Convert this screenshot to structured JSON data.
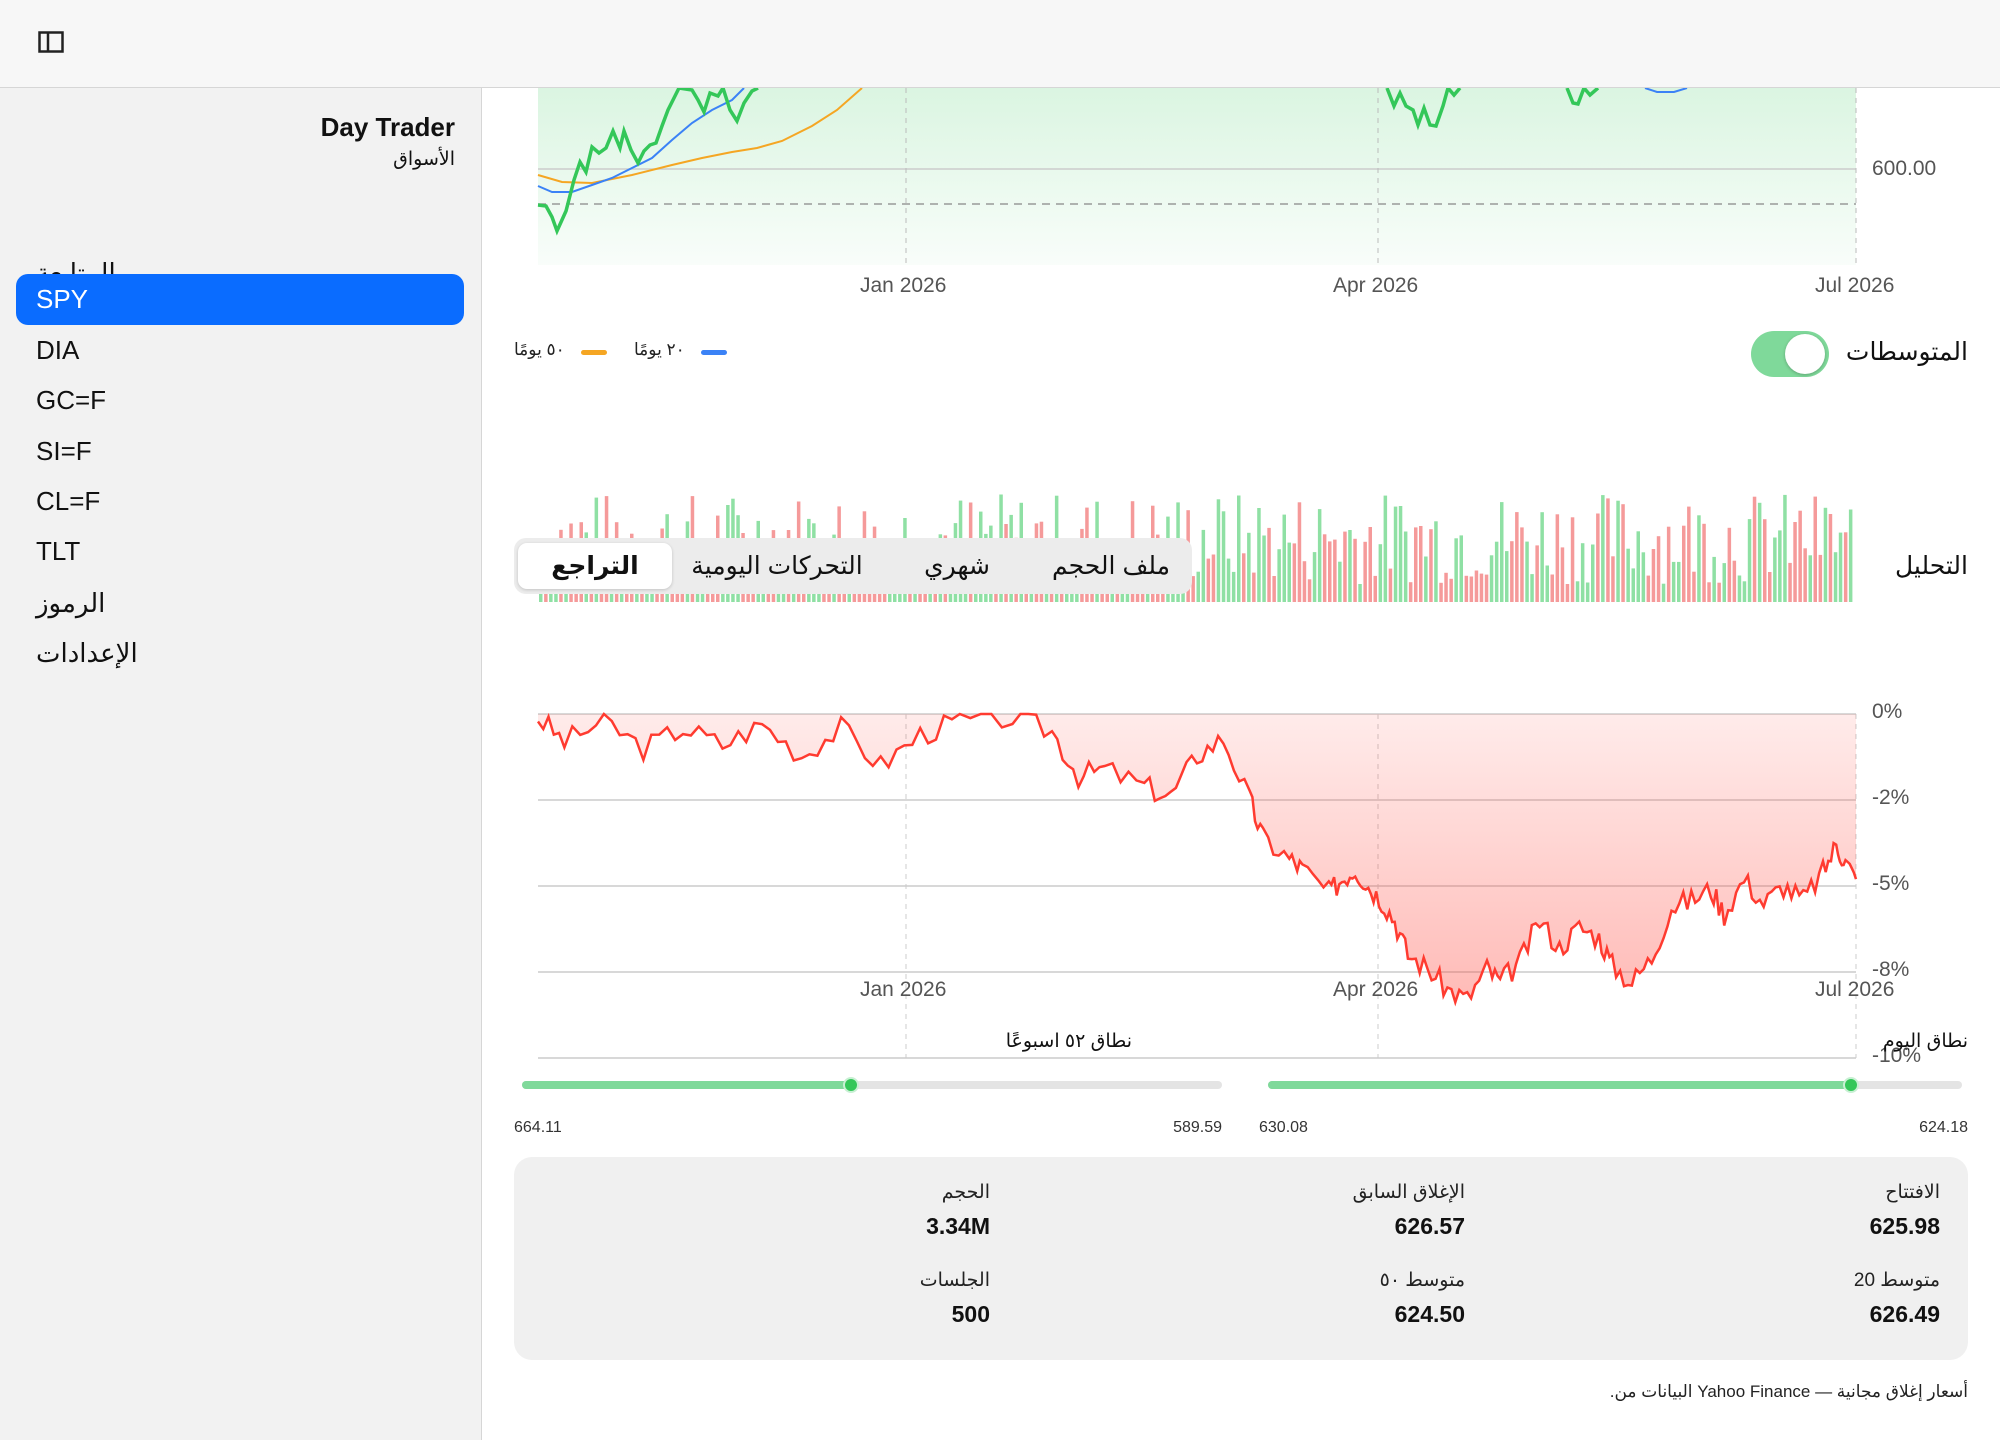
{
  "app": {
    "title": "Day Trader",
    "subtitle": "الأسواق"
  },
  "sidebar": {
    "items": [
      {
        "label": "المتابعة",
        "active": false
      },
      {
        "label": "SPY",
        "active": true
      },
      {
        "label": "DIA",
        "active": false
      },
      {
        "label": "GC=F",
        "active": false
      },
      {
        "label": "SI=F",
        "active": false
      },
      {
        "label": "CL=F",
        "active": false
      },
      {
        "label": "TLT",
        "active": false
      },
      {
        "label": "الرموز",
        "active": false
      },
      {
        "label": "الإعدادات",
        "active": false
      }
    ]
  },
  "colors": {
    "accent": "#0a6cff",
    "up": "#34c759",
    "down": "#ff3b30",
    "ma20": "#3b82f6",
    "ma50": "#f5a623"
  },
  "price_chart": {
    "y_tick": "600.00",
    "x_ticks": [
      "Jan 2026",
      "Apr 2026",
      "Jul 2026"
    ]
  },
  "legend": {
    "ma50": "٥٠ يومًا",
    "ma20": "٢٠ يومًا"
  },
  "averages_toggle": {
    "label": "المتوسطات",
    "on": true
  },
  "analysis": {
    "title": "التحليل",
    "tabs": [
      {
        "label": "التراجع",
        "active": true
      },
      {
        "label": "التحركات اليومية",
        "active": false
      },
      {
        "label": "شهري",
        "active": false
      },
      {
        "label": "ملف الحجم",
        "active": false
      }
    ]
  },
  "chart_data": [
    {
      "type": "line",
      "title": "",
      "x": [
        "Oct 2025",
        "Jan 2026",
        "Apr 2026",
        "Jul 2026"
      ],
      "x_ticks": [
        "Jan 2026",
        "Apr 2026",
        "Jul 2026"
      ],
      "y_ticks": [
        "600.00"
      ],
      "series": [
        {
          "name": "٢٠ يومًا"
        },
        {
          "name": "٥٠ يومًا"
        }
      ]
    },
    {
      "type": "bar",
      "title": "",
      "note": "volume bars colored green (up day) / red (down day)"
    },
    {
      "type": "area",
      "title": "",
      "x_ticks": [
        "Jan 2026",
        "Apr 2026",
        "Jul 2026"
      ],
      "y_ticks": [
        "0%",
        "-2%",
        "-5%",
        "-8%",
        "-10%"
      ],
      "ylim": [
        -10,
        0
      ],
      "points": [
        [
          "Oct 2025",
          -0.6
        ],
        [
          "Nov 2025",
          -1.0
        ],
        [
          "Dec 2025",
          -0.8
        ],
        [
          "Jan 2026",
          -1.1
        ],
        [
          "Feb 2026",
          -0.3
        ],
        [
          "Feb 2026",
          -1.5
        ],
        [
          "Mar 2026",
          -2.0
        ],
        [
          "Mar 2026",
          -4.0
        ],
        [
          "Mar 2026",
          -5.5
        ],
        [
          "Apr 2026",
          -7.3
        ],
        [
          "Apr 2026",
          -8.4
        ],
        [
          "May 2026",
          -7.0
        ],
        [
          "May 2026",
          -6.2
        ],
        [
          "May 2026",
          -7.6
        ],
        [
          "Jun 2026",
          -5.5
        ],
        [
          "Jun 2026",
          -6.3
        ],
        [
          "Jul 2026",
          -4.0
        ],
        [
          "Jul 2026",
          -5.3
        ]
      ]
    }
  ],
  "day_range": {
    "label": "نطاق اليوم",
    "low": "624.18",
    "high": "630.08",
    "position": 0.84
  },
  "week52_range": {
    "label": "نطاق ٥٢ اسبوعًا",
    "low": "589.59",
    "high": "664.11",
    "position": 0.47
  },
  "stats": [
    {
      "label": "الافتتاح",
      "value": "625.98"
    },
    {
      "label": "الإغلاق السابق",
      "value": "626.57"
    },
    {
      "label": "الحجم",
      "value": "3.34M"
    },
    {
      "label": "متوسط 20",
      "value": "626.49"
    },
    {
      "label": "متوسط ٥٠",
      "value": "624.50"
    },
    {
      "label": "الجلسات",
      "value": "500"
    }
  ],
  "footnote": "أسعار إغلاق مجانية — Yahoo Finance البيانات من."
}
